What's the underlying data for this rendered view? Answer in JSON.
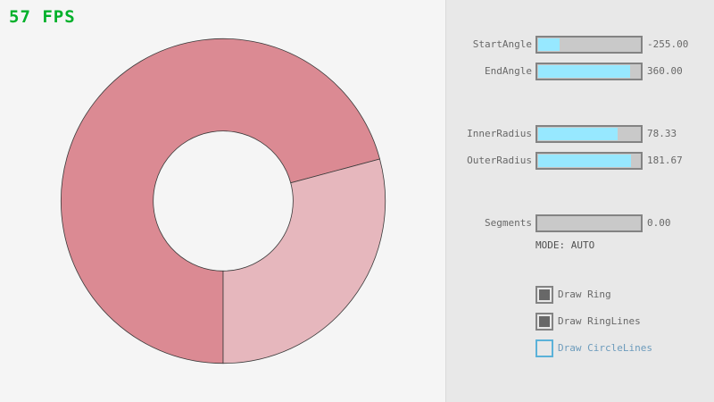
{
  "fps": "57 FPS",
  "ring": {
    "start_angle": -255,
    "end_angle": 360,
    "inner_radius": 78.33,
    "outer_radius": 181.67,
    "colors": {
      "overlap": "#db8a93",
      "single": "#e6b7bd",
      "lines": "#3a3a3a"
    }
  },
  "sliders": [
    {
      "label": "StartAngle",
      "value": "-255.00",
      "fill": 0.21
    },
    {
      "label": "EndAngle",
      "value": "360.00",
      "fill": 0.9
    },
    {
      "label": "InnerRadius",
      "value": "78.33",
      "fill": 0.78
    },
    {
      "label": "OuterRadius",
      "value": "181.67",
      "fill": 0.91
    },
    {
      "label": "Segments",
      "value": "0.00",
      "fill": 0
    }
  ],
  "mode": "MODE: AUTO",
  "checkboxes": [
    {
      "label": "Draw Ring",
      "checked": true
    },
    {
      "label": "Draw RingLines",
      "checked": true
    },
    {
      "label": "Draw CircleLines",
      "checked": false
    }
  ]
}
